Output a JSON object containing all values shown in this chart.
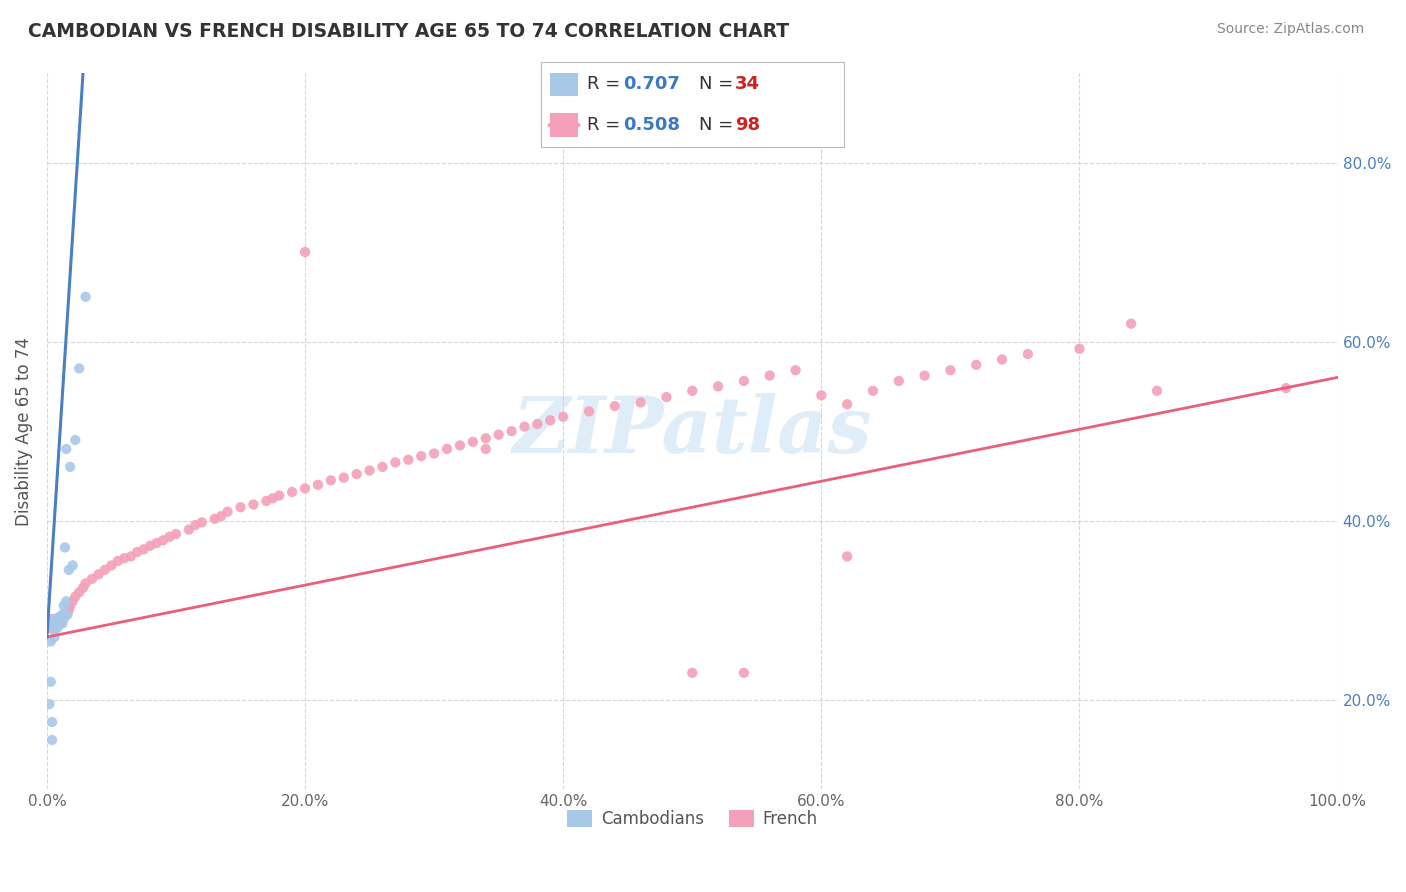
{
  "title": "CAMBODIAN VS FRENCH DISABILITY AGE 65 TO 74 CORRELATION CHART",
  "source": "Source: ZipAtlas.com",
  "ylabel": "Disability Age 65 to 74",
  "xlim": [
    0.0,
    1.0
  ],
  "ylim": [
    0.1,
    0.9
  ],
  "x_ticks": [
    0.0,
    0.2,
    0.4,
    0.6,
    0.8,
    1.0
  ],
  "x_tick_labels": [
    "0.0%",
    "20.0%",
    "40.0%",
    "60.0%",
    "80.0%",
    "100.0%"
  ],
  "y_ticks": [
    0.2,
    0.4,
    0.6,
    0.8
  ],
  "y_tick_labels": [
    "20.0%",
    "40.0%",
    "60.0%",
    "80.0%"
  ],
  "cambodian_color": "#a8c8e8",
  "french_color": "#f4a0b8",
  "cambodian_line_color": "#4a7fc0",
  "french_line_color": "#e8607a",
  "background_color": "#ffffff",
  "grid_color": "#cccccc",
  "watermark": "ZIPatlas",
  "cambodian_scatter_x": [
    0.002,
    0.003,
    0.003,
    0.004,
    0.004,
    0.005,
    0.005,
    0.005,
    0.006,
    0.006,
    0.007,
    0.007,
    0.008,
    0.008,
    0.009,
    0.009,
    0.01,
    0.01,
    0.011,
    0.011,
    0.012,
    0.012,
    0.013,
    0.013,
    0.014,
    0.015,
    0.015,
    0.016,
    0.017,
    0.018,
    0.02,
    0.022,
    0.025,
    0.03
  ],
  "cambodian_scatter_y": [
    0.195,
    0.22,
    0.265,
    0.175,
    0.155,
    0.285,
    0.285,
    0.29,
    0.27,
    0.28,
    0.285,
    0.29,
    0.28,
    0.285,
    0.288,
    0.292,
    0.29,
    0.285,
    0.292,
    0.29,
    0.285,
    0.295,
    0.29,
    0.305,
    0.37,
    0.48,
    0.31,
    0.295,
    0.345,
    0.46,
    0.35,
    0.49,
    0.57,
    0.65
  ],
  "french_scatter_x": [
    0.002,
    0.003,
    0.003,
    0.004,
    0.004,
    0.005,
    0.005,
    0.005,
    0.006,
    0.006,
    0.007,
    0.007,
    0.008,
    0.008,
    0.009,
    0.01,
    0.01,
    0.011,
    0.012,
    0.013,
    0.014,
    0.015,
    0.016,
    0.017,
    0.018,
    0.02,
    0.022,
    0.025,
    0.028,
    0.03,
    0.035,
    0.04,
    0.045,
    0.05,
    0.055,
    0.06,
    0.065,
    0.07,
    0.075,
    0.08,
    0.085,
    0.09,
    0.095,
    0.1,
    0.11,
    0.115,
    0.12,
    0.13,
    0.135,
    0.14,
    0.15,
    0.16,
    0.17,
    0.175,
    0.18,
    0.19,
    0.2,
    0.21,
    0.22,
    0.23,
    0.24,
    0.25,
    0.26,
    0.27,
    0.28,
    0.29,
    0.3,
    0.31,
    0.32,
    0.33,
    0.34,
    0.35,
    0.36,
    0.37,
    0.38,
    0.39,
    0.4,
    0.42,
    0.44,
    0.46,
    0.48,
    0.5,
    0.52,
    0.54,
    0.56,
    0.58,
    0.6,
    0.62,
    0.64,
    0.66,
    0.68,
    0.7,
    0.72,
    0.74,
    0.76,
    0.8,
    0.86,
    0.96
  ],
  "french_scatter_y": [
    0.28,
    0.29,
    0.28,
    0.285,
    0.29,
    0.285,
    0.29,
    0.28,
    0.285,
    0.29,
    0.285,
    0.29,
    0.29,
    0.285,
    0.29,
    0.285,
    0.292,
    0.29,
    0.292,
    0.295,
    0.295,
    0.295,
    0.3,
    0.3,
    0.305,
    0.31,
    0.315,
    0.32,
    0.325,
    0.33,
    0.335,
    0.34,
    0.345,
    0.35,
    0.355,
    0.358,
    0.36,
    0.365,
    0.368,
    0.372,
    0.375,
    0.378,
    0.382,
    0.385,
    0.39,
    0.395,
    0.398,
    0.402,
    0.405,
    0.41,
    0.415,
    0.418,
    0.422,
    0.425,
    0.428,
    0.432,
    0.436,
    0.44,
    0.445,
    0.448,
    0.452,
    0.456,
    0.46,
    0.465,
    0.468,
    0.472,
    0.475,
    0.48,
    0.484,
    0.488,
    0.492,
    0.496,
    0.5,
    0.505,
    0.508,
    0.512,
    0.516,
    0.522,
    0.528,
    0.532,
    0.538,
    0.545,
    0.55,
    0.556,
    0.562,
    0.568,
    0.54,
    0.53,
    0.545,
    0.556,
    0.562,
    0.568,
    0.574,
    0.58,
    0.586,
    0.592,
    0.545,
    0.548
  ],
  "french_scatter_extra_x": [
    0.2,
    0.34,
    0.5,
    0.54,
    0.62,
    0.84
  ],
  "french_scatter_extra_y": [
    0.7,
    0.48,
    0.23,
    0.23,
    0.36,
    0.62
  ],
  "cam_line_x0": 0.0,
  "cam_line_x1": 0.028,
  "cam_line_y0": 0.27,
  "cam_line_y1": 0.9,
  "fr_line_x0": 0.0,
  "fr_line_x1": 1.0,
  "fr_line_y0": 0.27,
  "fr_line_y1": 0.56
}
